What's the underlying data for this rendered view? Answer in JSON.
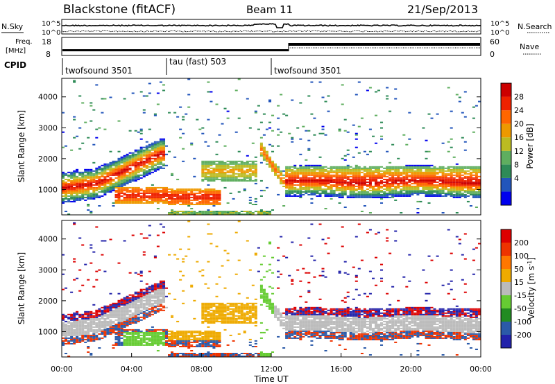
{
  "header": {
    "radar": "Blackstone (fitACF)",
    "beam": "Beam 11",
    "date": "21/Sep/2013"
  },
  "noise_panel": {
    "left_label": "N.Sky",
    "right_label": "N.Search",
    "ticks": [
      "10^5",
      "10^0"
    ]
  },
  "freq_panel": {
    "left_label_top": "Freq.",
    "left_label_bottom": "[MHz]",
    "right_label": "Nave",
    "left_ticks": [
      "18",
      "8"
    ],
    "right_ticks": [
      "60",
      "0"
    ]
  },
  "cpid": {
    "label": "CPID",
    "segments": [
      {
        "name": "twofsound 3501",
        "start": 0,
        "end": 6
      },
      {
        "name": "tau (fast) 503",
        "start": 6,
        "end": 12
      },
      {
        "name": "twofsound 3501",
        "start": 12,
        "end": 24
      }
    ]
  },
  "chart_data": [
    {
      "type": "heatmap",
      "name": "power",
      "ylabel": "Slant Range [km]",
      "ylim": [
        180,
        4600
      ],
      "yticks": [
        "4000",
        "3000",
        "2000",
        "1000"
      ],
      "xlim": [
        0,
        24
      ],
      "colorbar": {
        "label": "Power [dB]",
        "ticks": [
          "28",
          "24",
          "20",
          "16",
          "12",
          "8",
          "4"
        ],
        "colors": [
          "#0000ee",
          "#2255bb",
          "#2e8b57",
          "#5fae5f",
          "#bbbb22",
          "#ee9900",
          "#ff6600",
          "#ee2200",
          "#cc0000"
        ]
      }
    },
    {
      "type": "heatmap",
      "name": "velocity",
      "ylabel": "Slant Range [km]",
      "ylim": [
        180,
        4600
      ],
      "yticks": [
        "4000",
        "3000",
        "2000",
        "1000"
      ],
      "xlim": [
        0,
        24
      ],
      "xticks": [
        "00:00",
        "04:00",
        "08:00",
        "12:00",
        "16:00",
        "20:00",
        "00:00"
      ],
      "xlabel": "Time UT",
      "colorbar": {
        "label": "Velocity [m s",
        "label_sup": "-1",
        "label_end": "]",
        "ticks": [
          "200",
          "100",
          "50",
          "15",
          "-15",
          "-50",
          "-100",
          "-200"
        ],
        "colors": [
          "#2222aa",
          "#2b5aa8",
          "#228b22",
          "#66cc33",
          "#bbbbbb",
          "#eeaa00",
          "#ff7700",
          "#ee3300",
          "#dd0000"
        ]
      }
    }
  ]
}
